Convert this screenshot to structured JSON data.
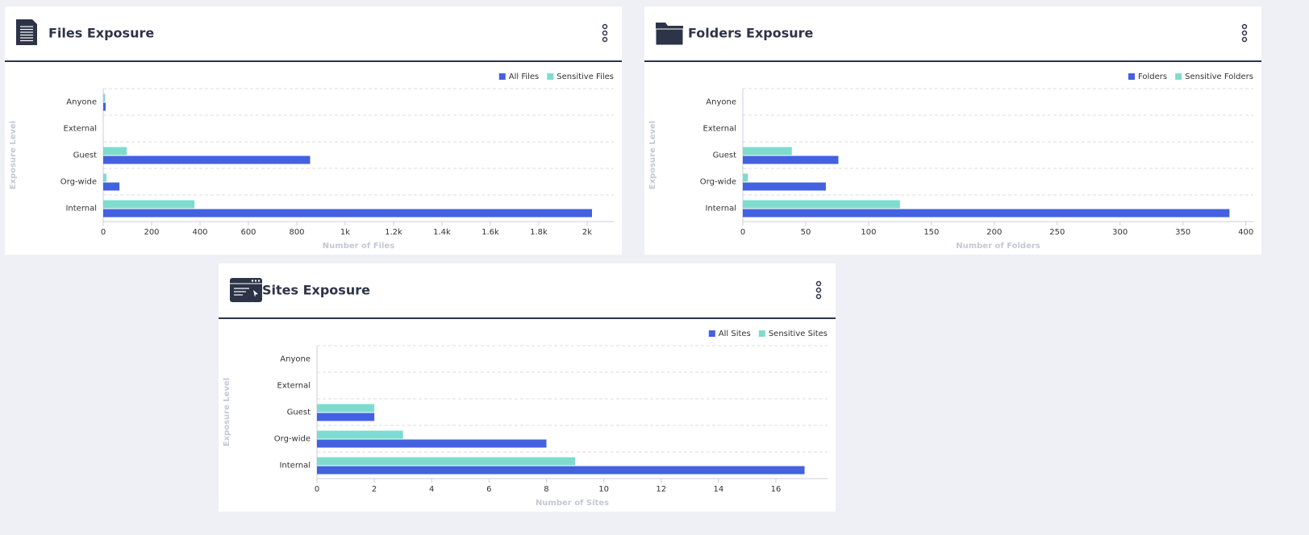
{
  "chart_data": [
    {
      "type": "bar",
      "title": "Files Exposure",
      "xlabel": "Number of Files",
      "ylabel": "Exposure Level",
      "categories": [
        "Anyone",
        "External",
        "Guest",
        "Org-wide",
        "Internal"
      ],
      "series": [
        {
          "name": "All Files",
          "color": "#4361e0",
          "values": [
            10,
            0,
            855,
            67,
            2020
          ]
        },
        {
          "name": "Sensitive Files",
          "color": "#7ddccd",
          "values": [
            8,
            0,
            97,
            13,
            377
          ]
        }
      ],
      "xlim": [
        0,
        2110
      ],
      "xticks": [
        0,
        200,
        400,
        600,
        800,
        {
          "value": 1000,
          "label": "1k"
        },
        {
          "value": 1200,
          "label": "1.2k"
        },
        {
          "value": 1400,
          "label": "1.4k"
        },
        {
          "value": 1600,
          "label": "1.6k"
        },
        {
          "value": 1800,
          "label": "1.8k"
        },
        {
          "value": 2000,
          "label": "2k"
        }
      ]
    },
    {
      "type": "bar",
      "title": "Folders Exposure",
      "xlabel": "Number of Folders",
      "ylabel": "Exposure Level",
      "categories": [
        "Anyone",
        "External",
        "Guest",
        "Org-wide",
        "Internal"
      ],
      "series": [
        {
          "name": "Folders",
          "color": "#4361e0",
          "values": [
            0,
            0,
            76,
            66,
            387
          ]
        },
        {
          "name": "Sensitive Folders",
          "color": "#7ddccd",
          "values": [
            0,
            0,
            39,
            4,
            125
          ]
        }
      ],
      "xlim": [
        0,
        406
      ],
      "xticks": [
        0,
        50,
        100,
        150,
        200,
        250,
        300,
        350,
        400
      ]
    },
    {
      "type": "bar",
      "title": "Sites Exposure",
      "xlabel": "Number of Sites",
      "ylabel": "Exposure Level",
      "categories": [
        "Anyone",
        "External",
        "Guest",
        "Org-wide",
        "Internal"
      ],
      "series": [
        {
          "name": "All Sites",
          "color": "#4361e0",
          "values": [
            0,
            0,
            2,
            8,
            17
          ]
        },
        {
          "name": "Sensitive Sites",
          "color": "#7ddccd",
          "values": [
            0,
            0,
            2,
            3,
            9
          ]
        }
      ],
      "xlim": [
        0,
        17.8
      ],
      "xticks": [
        0,
        2,
        4,
        6,
        8,
        10,
        12,
        14,
        16
      ]
    }
  ]
}
